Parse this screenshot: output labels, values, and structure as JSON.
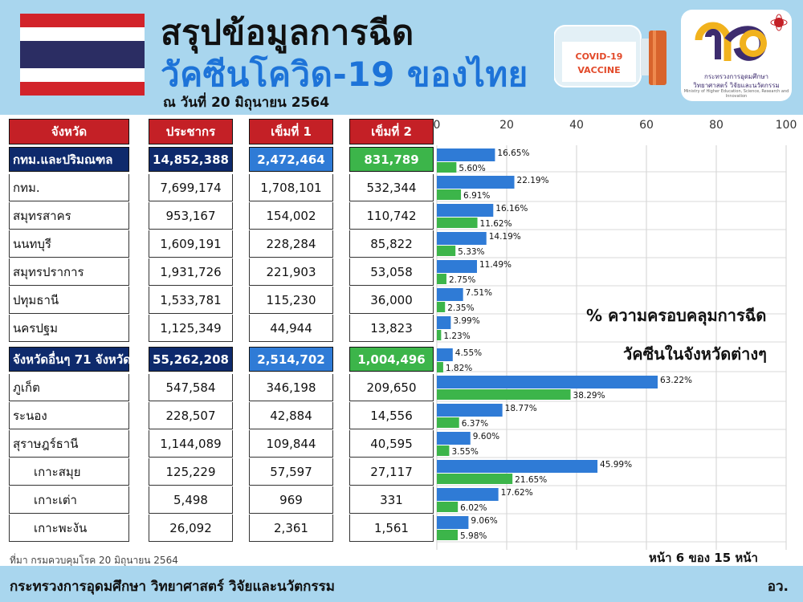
{
  "header": {
    "title_line1": "สรุปข้อมูลการฉีด",
    "title_line2": "วัคซีนโควิด-19 ของไทย",
    "date_line": "ณ วันที่ 20 มิถุนายน 2564",
    "vaccine_label_1": "COVID-19",
    "vaccine_label_2": "VACCINE",
    "ministry_logo_line1": "กระทรวงการอุดมศึกษา",
    "ministry_logo_line2": "วิทยาศาสตร์ วิจัยและนวัตกรรม",
    "ministry_logo_line3": "Ministry of Higher Education, Science, Research and Innovation"
  },
  "table": {
    "headers": [
      "จังหวัด",
      "ประชากร",
      "เข็มที่ 1",
      "เข็มที่ 2"
    ],
    "rows": [
      {
        "kind": "group",
        "name": "กทม.และปริมณฑล",
        "population": "14,852,388",
        "dose1": "2,472,464",
        "dose2": "831,789"
      },
      {
        "kind": "row",
        "name": "กทม.",
        "population": "7,699,174",
        "dose1": "1,708,101",
        "dose2": "532,344"
      },
      {
        "kind": "row",
        "name": "สมุทรสาคร",
        "population": "953,167",
        "dose1": "154,002",
        "dose2": "110,742"
      },
      {
        "kind": "row",
        "name": "นนทบุรี",
        "population": "1,609,191",
        "dose1": "228,284",
        "dose2": "85,822"
      },
      {
        "kind": "row",
        "name": "สมุทรปราการ",
        "population": "1,931,726",
        "dose1": "221,903",
        "dose2": "53,058"
      },
      {
        "kind": "row",
        "name": "ปทุมธานี",
        "population": "1,533,781",
        "dose1": "115,230",
        "dose2": "36,000"
      },
      {
        "kind": "row",
        "name": "นครปฐม",
        "population": "1,125,349",
        "dose1": "44,944",
        "dose2": "13,823"
      },
      {
        "kind": "group",
        "name": "จังหวัดอื่นๆ 71 จังหวัด",
        "population": "55,262,208",
        "dose1": "2,514,702",
        "dose2": "1,004,496"
      },
      {
        "kind": "row",
        "name": "ภูเก็ต",
        "population": "547,584",
        "dose1": "346,198",
        "dose2": "209,650"
      },
      {
        "kind": "row",
        "name": "ระนอง",
        "population": "228,507",
        "dose1": "42,884",
        "dose2": "14,556"
      },
      {
        "kind": "row",
        "name": "สุราษฎร์ธานี",
        "population": "1,144,089",
        "dose1": "109,844",
        "dose2": "40,595"
      },
      {
        "kind": "sub",
        "name": "เกาะสมุย",
        "population": "125,229",
        "dose1": "57,597",
        "dose2": "27,117"
      },
      {
        "kind": "sub",
        "name": "เกาะเต่า",
        "population": "5,498",
        "dose1": "969",
        "dose2": "331"
      },
      {
        "kind": "sub",
        "name": "เกาะพะงัน",
        "population": "26,092",
        "dose1": "2,361",
        "dose2": "1,561"
      }
    ]
  },
  "chart_data": {
    "type": "bar",
    "orientation": "horizontal",
    "categories": [
      "กทม.และปริมณฑล",
      "กทม.",
      "สมุทรสาคร",
      "นนทบุรี",
      "สมุทรปราการ",
      "ปทุมธานี",
      "นครปฐม",
      "จังหวัดอื่นๆ 71 จังหวัด",
      "ภูเก็ต",
      "ระนอง",
      "สุราษฎร์ธานี",
      "เกาะสมุย",
      "เกาะเต่า",
      "เกาะพะงัน"
    ],
    "series": [
      {
        "values": [
          16.65,
          22.19,
          16.16,
          14.19,
          11.49,
          7.51,
          3.99,
          4.55,
          63.22,
          18.77,
          9.6,
          45.99,
          17.62,
          9.06
        ],
        "color": "#2f7bd6"
      },
      {
        "values": [
          5.6,
          6.91,
          11.62,
          5.33,
          2.75,
          2.35,
          1.23,
          1.82,
          38.29,
          6.37,
          3.55,
          21.65,
          6.02,
          5.98
        ],
        "color": "#3cb54a"
      }
    ],
    "value_labels": [
      [
        "16.65%",
        "5.60%"
      ],
      [
        "22.19%",
        "6.91%"
      ],
      [
        "16.16%",
        "11.62%"
      ],
      [
        "14.19%",
        "5.33%"
      ],
      [
        "11.49%",
        "2.75%"
      ],
      [
        "7.51%",
        "2.35%"
      ],
      [
        "3.99%",
        "1.23%"
      ],
      [
        "4.55%",
        "1.82%"
      ],
      [
        "63.22%",
        "38.29%"
      ],
      [
        "18.77%",
        "6.37%"
      ],
      [
        "9.60%",
        "3.55%"
      ],
      [
        "45.99%",
        "21.65%"
      ],
      [
        "17.62%",
        "6.02%"
      ],
      [
        "9.06%",
        "5.98%"
      ]
    ],
    "xlim": [
      0,
      100
    ],
    "xticks": [
      0,
      20,
      40,
      60,
      80,
      100
    ],
    "grid": true,
    "annotation_line1": "% ความครอบคลุมการฉีด",
    "annotation_line2": "วัคซีนในจังหวัดต่างๆ"
  },
  "footer": {
    "source": "ที่มา กรมควบคุมโรค 20 มิถุนายน 2564",
    "page_indicator": "หน้า 6 ของ 15 หน้า",
    "ministry": "กระทรวงการอุดมศึกษา วิทยาศาสตร์ วิจัยและนวัตกรรม",
    "abbr": "อว."
  }
}
